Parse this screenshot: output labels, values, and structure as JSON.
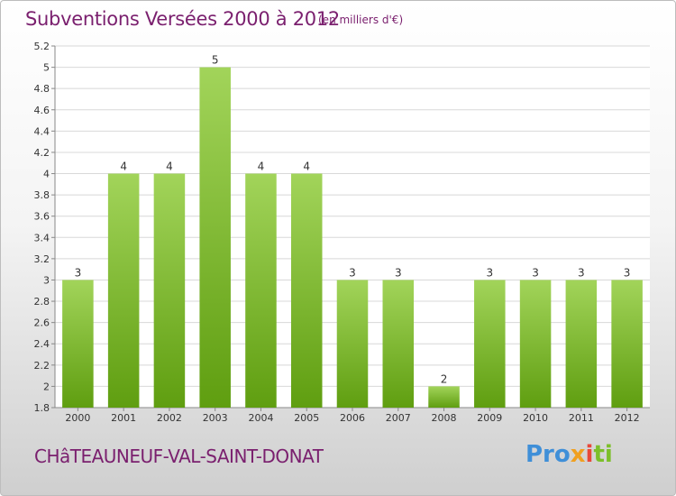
{
  "header": {
    "title": "Subventions Versées 2000 à 2012",
    "subtitle": "(en milliers d'€)"
  },
  "footer": {
    "town": "CHâTEAUNEUF-VAL-SAINT-DONAT",
    "logo_parts": [
      "Pro",
      "x",
      "i",
      "ti"
    ]
  },
  "colors": {
    "bar_light": "#a2d45a",
    "bar_dark": "#5f9e10",
    "title": "#7a1f6e"
  },
  "chart_data": {
    "type": "bar",
    "categories": [
      "2000",
      "2001",
      "2002",
      "2003",
      "2004",
      "2005",
      "2006",
      "2007",
      "2008",
      "2009",
      "2010",
      "2011",
      "2012"
    ],
    "values": [
      3,
      4,
      4,
      5,
      4,
      4,
      3,
      3,
      2,
      3,
      3,
      3,
      3
    ],
    "data_labels": [
      "3",
      "4",
      "4",
      "5",
      "4",
      "4",
      "3",
      "3",
      "2",
      "3",
      "3",
      "3",
      "3"
    ],
    "bar_tops": [
      3,
      4,
      4,
      5,
      4,
      4,
      3,
      3,
      2,
      3,
      3,
      3,
      3
    ],
    "ylim": [
      1.8,
      5.2
    ],
    "yticks": [
      1.8,
      2,
      2.2,
      2.4,
      2.6,
      2.8,
      3,
      3.2,
      3.4,
      3.6,
      3.8,
      4,
      4.2,
      4.4,
      4.6,
      4.8,
      5,
      5.2
    ],
    "ytick_labels": [
      "1.8",
      "2",
      "2.2",
      "2.4",
      "2.6",
      "2.8",
      "3",
      "3.2",
      "3.4",
      "3.6",
      "3.8",
      "4",
      "4.2",
      "4.4",
      "4.6",
      "4.8",
      "5",
      "5.2"
    ],
    "grid": true,
    "title": "Subventions Versées 2000 à 2012",
    "xlabel": "",
    "ylabel": ""
  }
}
